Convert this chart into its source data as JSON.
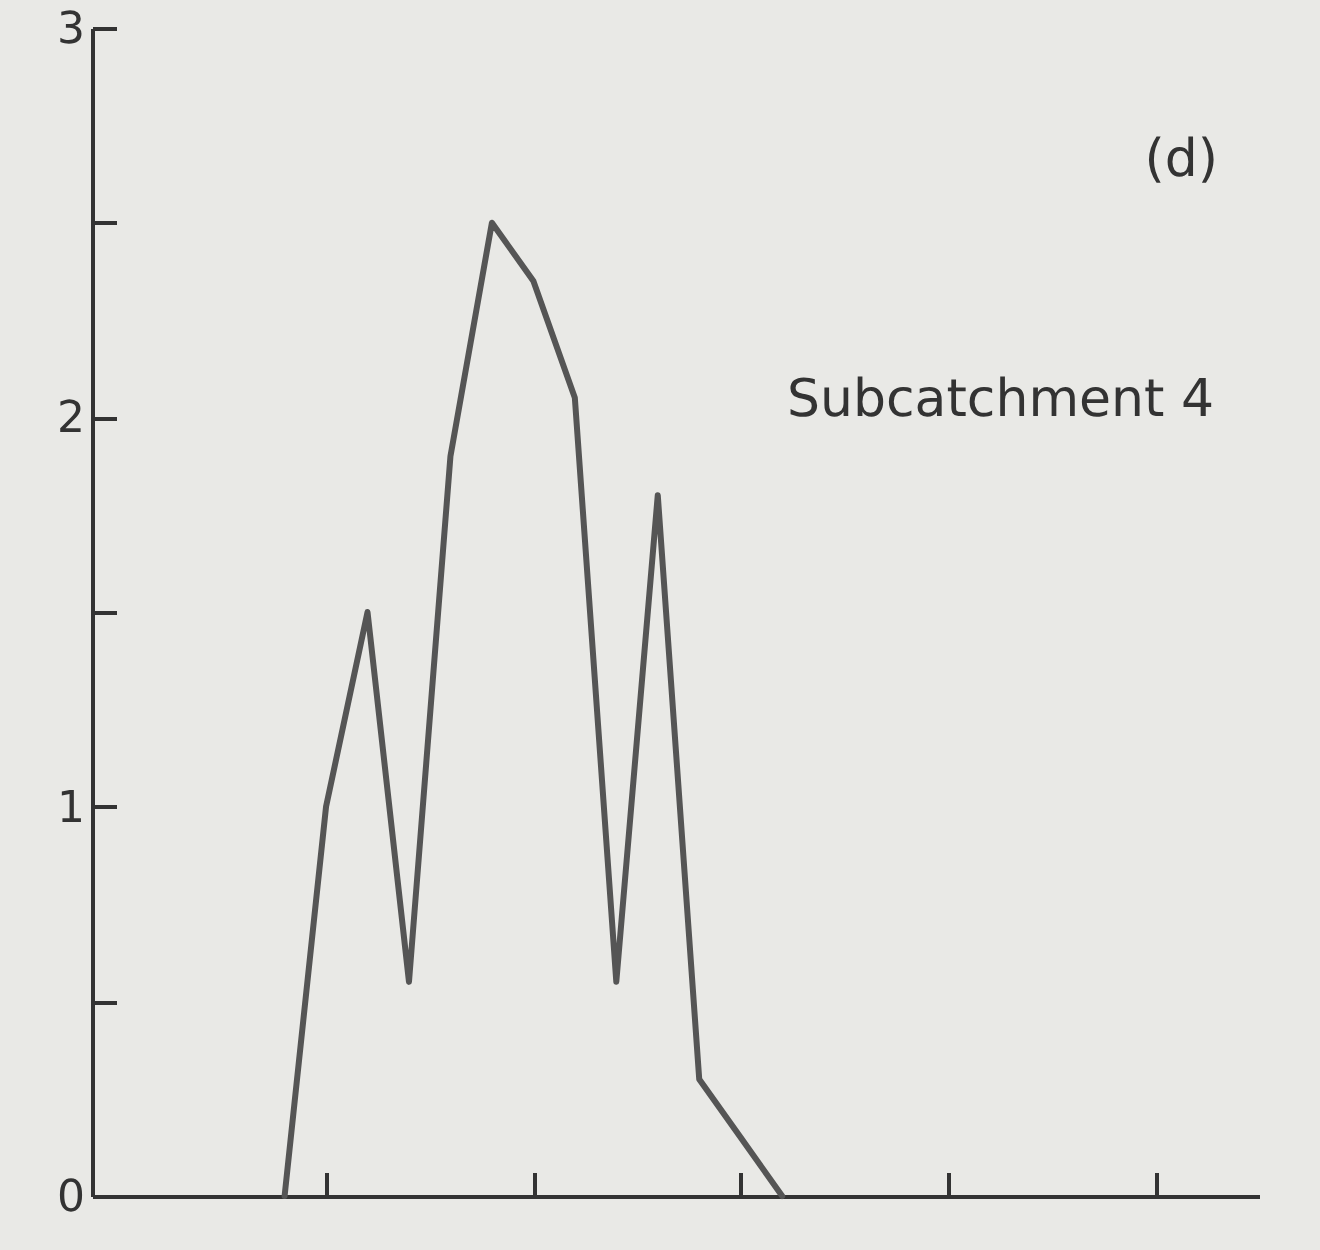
{
  "chart_data": {
    "type": "line",
    "categories": [
      null,
      null,
      null,
      null,
      null,
      null,
      null,
      null,
      null,
      null,
      null,
      null,
      null,
      null,
      null,
      null,
      null,
      null,
      null,
      null,
      null,
      null,
      null,
      null,
      null,
      null,
      null,
      null
    ],
    "series": [
      {
        "color": "#555555",
        "values": [
          null,
          null,
          null,
          null,
          0,
          1.0,
          1.5,
          0.55,
          1.9,
          2.5,
          2.35,
          2.05,
          0.55,
          1.8,
          0.3,
          0.15,
          0,
          null,
          null,
          null,
          null,
          null,
          null,
          null,
          null,
          null,
          null,
          null
        ]
      }
    ],
    "ylim": [
      0,
      3
    ],
    "yticks": [
      0,
      {
        "value": 0.5,
        "label": null
      },
      1,
      {
        "value": 1.5,
        "label": null
      },
      2,
      {
        "value": 2.5,
        "label": null
      },
      3
    ],
    "annotations": [
      "(d)",
      "Subcatchment 4"
    ],
    "grid": false,
    "marker": "none",
    "line_style": "solid"
  }
}
